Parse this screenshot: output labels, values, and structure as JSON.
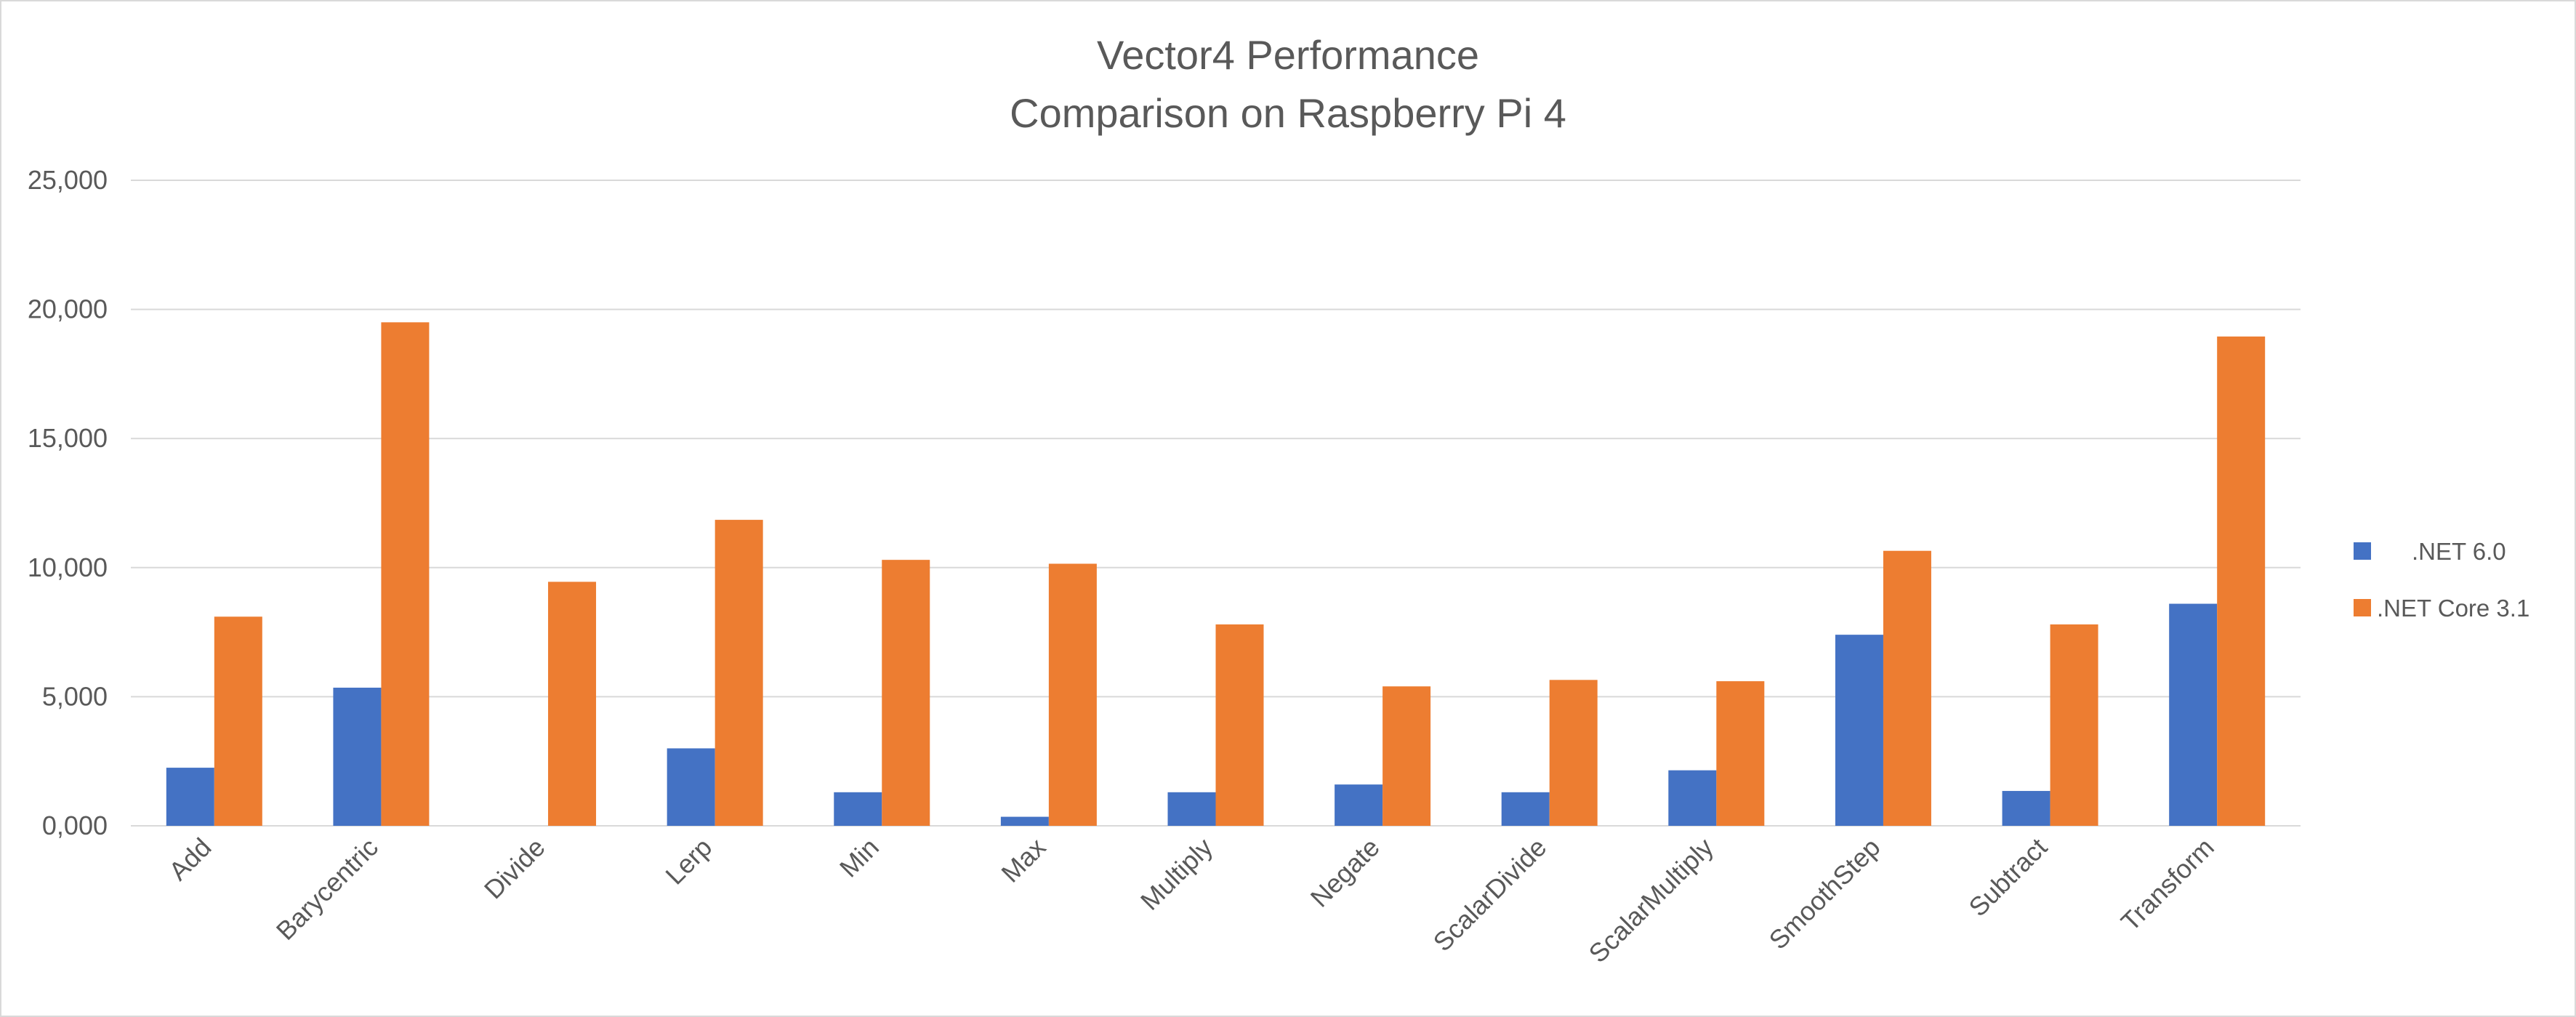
{
  "chart_data": {
    "type": "bar",
    "title": "Vector4 Performance",
    "subtitle": "Comparison on Raspberry Pi 4",
    "xlabel": "",
    "ylabel": "",
    "ylim": [
      0,
      25000
    ],
    "yticks": [
      0,
      5000,
      10000,
      15000,
      20000,
      25000
    ],
    "ytick_labels": [
      "0,000",
      "5,000",
      "10,000",
      "15,000",
      "20,000",
      "25,000"
    ],
    "grid": true,
    "legend_position": "right",
    "categories": [
      "Add",
      "Barycentric",
      "Divide",
      "Lerp",
      "Min",
      "Max",
      "Multiply",
      "Negate",
      "ScalarDivide",
      "ScalarMultiply",
      "SmoothStep",
      "Subtract",
      "Transform"
    ],
    "series": [
      {
        "name": ".NET 6.0",
        "color": "#4472c4",
        "values": [
          2250,
          5350,
          0,
          3000,
          1300,
          350,
          1300,
          1600,
          1300,
          2150,
          7400,
          1350,
          8600
        ]
      },
      {
        "name": ".NET Core 3.1",
        "color": "#ed7d31",
        "values": [
          8100,
          19500,
          9450,
          11850,
          10300,
          10150,
          7800,
          5400,
          5650,
          5600,
          10650,
          7800,
          18950
        ]
      }
    ]
  }
}
